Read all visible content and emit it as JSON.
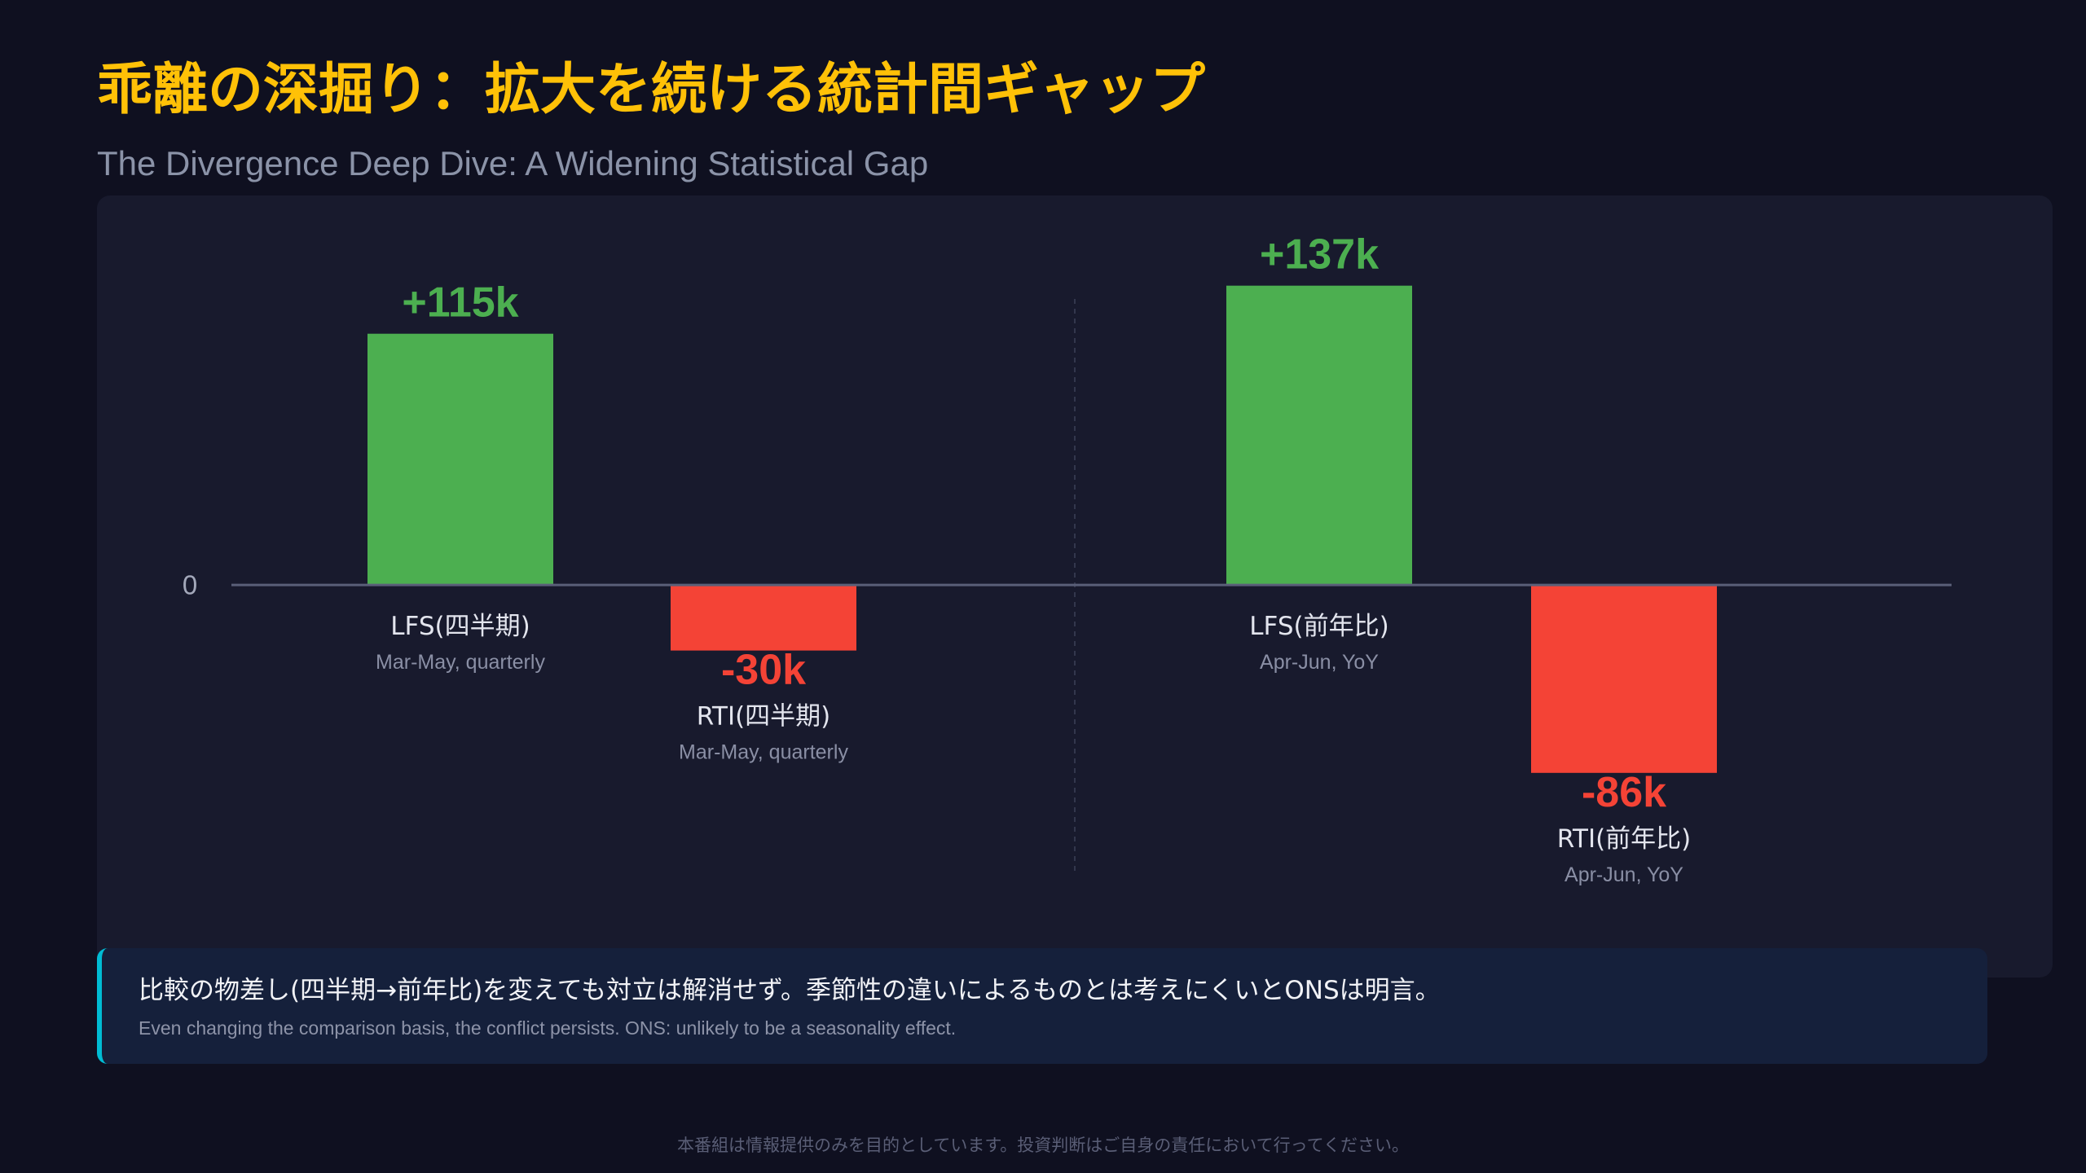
{
  "header": {
    "title": "乖離の深掘り：拡大を続ける統計間ギャップ",
    "subtitle": "The Divergence Deep Dive: A Widening Statistical Gap"
  },
  "chart_data": {
    "type": "bar",
    "categories": [
      "LFS(四半期)",
      "RTI(四半期)",
      "LFS(前年比)",
      "RTI(前年比)"
    ],
    "sublabels": [
      "Mar-May, quarterly",
      "Mar-May, quarterly",
      "Apr-Jun, YoY",
      "Apr-Jun, YoY"
    ],
    "values": [
      115,
      -30,
      137,
      -86
    ],
    "data_labels": [
      "+115k",
      "-30k",
      "+137k",
      "-86k"
    ],
    "y_tick_labels": [
      "0"
    ],
    "ylim": [
      -120,
      160
    ],
    "grid": false,
    "legend": "none",
    "colors": {
      "positive": "#4caf50",
      "negative": "#f44336"
    }
  },
  "note": {
    "text_ja": "比較の物差し(四半期→前年比)を変えても対立は解消せず。季節性の違いによるものとは考えにくいとONSは明言。",
    "text_en": "Even changing the comparison basis, the conflict persists. ONS: unlikely to be a seasonality effect.",
    "accent_color": "#00bcd4"
  },
  "footer": {
    "disclaimer": "本番組は情報提供のみを目的としています。投資判断はご自身の責任において行ってください。"
  },
  "colors": {
    "title": "#ffc107",
    "background": "#0f1020"
  }
}
